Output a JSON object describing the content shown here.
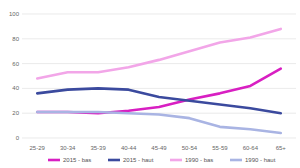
{
  "chart_data": {
    "type": "line",
    "categories": [
      "25-29",
      "30-34",
      "35-39",
      "40-44",
      "45-49",
      "50-54",
      "55-59",
      "60-64",
      "65+"
    ],
    "series": [
      {
        "name": "2015 - bas",
        "color": "#d81fc2",
        "values": [
          21,
          21,
          20,
          22,
          25,
          31,
          36,
          42,
          56
        ]
      },
      {
        "name": "2015 - haut",
        "color": "#3b4a9e",
        "values": [
          36,
          39,
          40,
          39,
          33,
          30,
          27,
          24,
          20
        ]
      },
      {
        "name": "1990 - bas",
        "color": "#f2a6e8",
        "values": [
          48,
          53,
          53,
          57,
          63,
          70,
          77,
          81,
          88
        ]
      },
      {
        "name": "1990 - haut",
        "color": "#a9b4e3",
        "values": [
          21,
          21,
          21,
          20,
          19,
          16,
          9,
          7,
          4
        ]
      }
    ],
    "ylim": [
      0,
      100
    ],
    "yticks": [
      0,
      20,
      40,
      60,
      80,
      100
    ],
    "grid": true,
    "legend": "bottom"
  }
}
